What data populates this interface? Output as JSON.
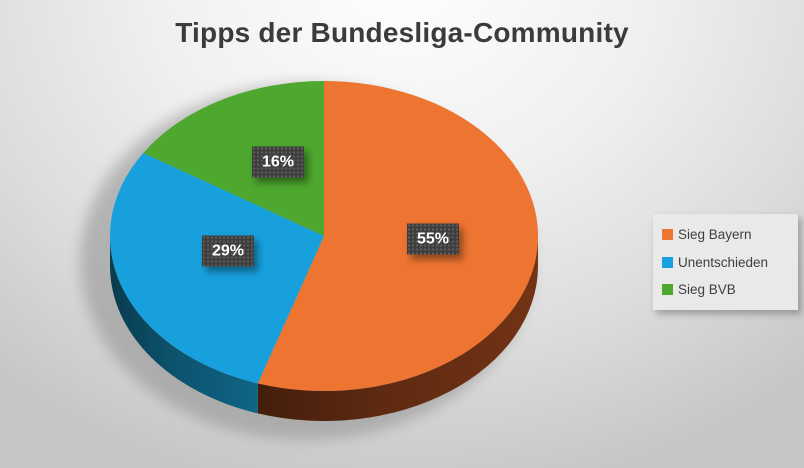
{
  "chart_data": {
    "type": "pie",
    "style": "3d",
    "title": "Tipps der Bundesliga-Community",
    "categories": [
      "Sieg Bayern",
      "Unentschieden",
      "Sieg BVB"
    ],
    "values": [
      55,
      29,
      16
    ],
    "data_labels": [
      "55%",
      "29%",
      "16%"
    ],
    "colors": [
      "#ED7431",
      "#18A0DC",
      "#4EA72E"
    ],
    "side_colors": [
      "#5E2A11",
      "#0C536E",
      "#2F6B1B"
    ],
    "label_chip_background": "#3E3E3E",
    "label_text_color": "#FFFFFF",
    "start_angle_deg": 0,
    "direction": "clockwise",
    "legend_position": "right",
    "grid": false
  },
  "legend": {
    "items": [
      {
        "label": "Sieg Bayern",
        "color": "#ED7431"
      },
      {
        "label": "Unentschieden",
        "color": "#18A0DC"
      },
      {
        "label": "Sieg BVB",
        "color": "#4EA72E"
      }
    ]
  }
}
